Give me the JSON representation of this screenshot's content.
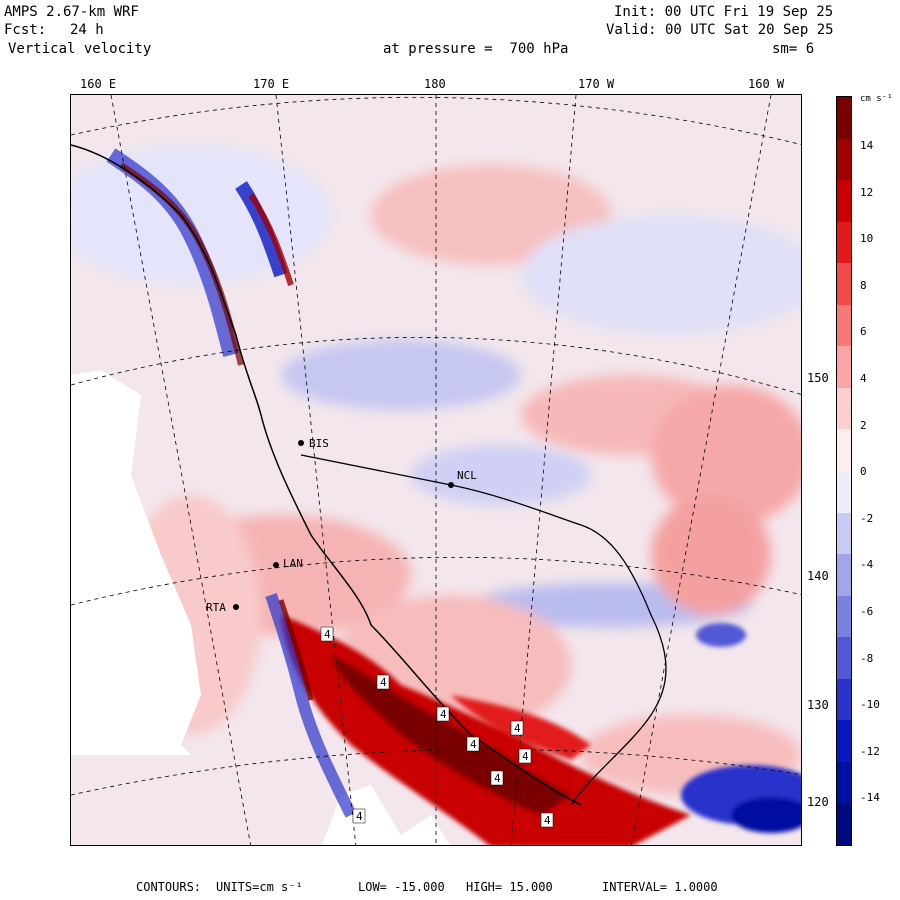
{
  "header": {
    "model": "AMPS 2.67-km WRF",
    "fcst_label": "Fcst:",
    "fcst_value": "24 h",
    "field": "Vertical velocity",
    "init": "Init: 00 UTC Fri 19 Sep 25",
    "valid": "Valid: 00 UTC Sat 20 Sep 25",
    "pressure": "at pressure =  700 hPa",
    "smooth": "sm= 6"
  },
  "longitude_labels": [
    "160 E",
    "170 E",
    "180",
    "170 W",
    "160 W"
  ],
  "latitude_labels": [
    "150 W",
    "140 W",
    "130 W",
    "120 W"
  ],
  "colorbar": {
    "units_label": "cm s⁻¹",
    "ticks": [
      "14",
      "12",
      "10",
      "8",
      "6",
      "4",
      "2",
      "0",
      "-2",
      "-4",
      "-6",
      "-8",
      "-10",
      "-12",
      "-14"
    ],
    "colors": [
      "#7a0000",
      "#a10000",
      "#c80000",
      "#e21a1a",
      "#f24a4a",
      "#f77878",
      "#f9a5a5",
      "#fcd0d0",
      "#fdeeee",
      "#ededfb",
      "#c9caf3",
      "#a3a5ea",
      "#7c80e0",
      "#5358d6",
      "#2b33cc",
      "#0a18c0",
      "#0010a0",
      "#000a80"
    ]
  },
  "stations": [
    "BIS",
    "NCL",
    "LAN",
    "RTA"
  ],
  "footer": {
    "contours_label": "CONTOURS:",
    "units": "UNITS=cm s⁻¹",
    "low": "LOW= -15.000",
    "high": "HIGH= 15.000",
    "interval": "INTERVAL= 1.0000"
  },
  "map_marker_value": "4"
}
